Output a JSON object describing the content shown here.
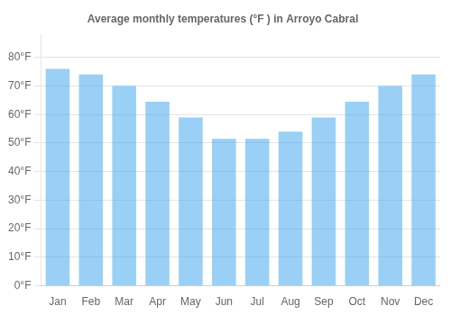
{
  "chart_data": {
    "type": "bar",
    "title": "Average monthly temperatures (°F ) in Arroyo Cabral",
    "categories": [
      "Jan",
      "Feb",
      "Mar",
      "Apr",
      "May",
      "Jun",
      "Jul",
      "Aug",
      "Sep",
      "Oct",
      "Nov",
      "Dec"
    ],
    "values": [
      76,
      74,
      70,
      64.5,
      59,
      51.5,
      51.5,
      54,
      59,
      64.5,
      70,
      74
    ],
    "ylim": [
      0,
      88
    ],
    "yticks": [
      {
        "value": 0,
        "label": "0°F"
      },
      {
        "value": 10,
        "label": "10°F"
      },
      {
        "value": 20,
        "label": "20°F"
      },
      {
        "value": 30,
        "label": "30°F"
      },
      {
        "value": 40,
        "label": "40°F"
      },
      {
        "value": 50,
        "label": "50°F"
      },
      {
        "value": 60,
        "label": "60°F"
      },
      {
        "value": 70,
        "label": "70°F"
      },
      {
        "value": 80,
        "label": "80°F"
      }
    ],
    "grid": true
  }
}
